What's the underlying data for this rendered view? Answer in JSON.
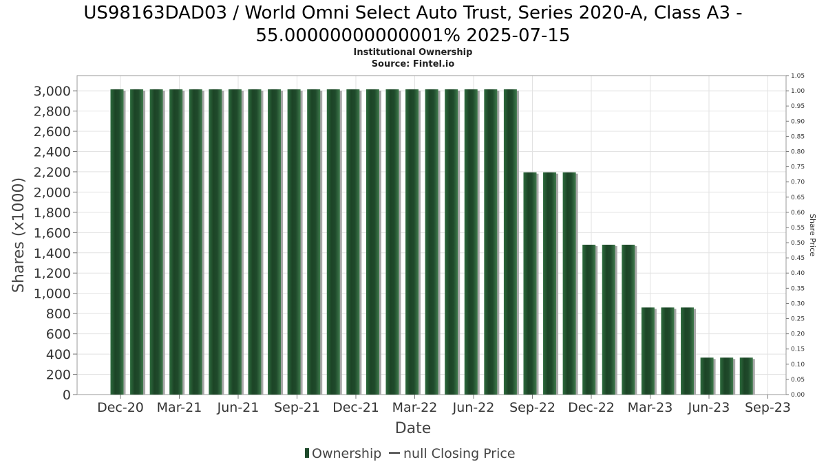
{
  "chart_data": {
    "type": "bar",
    "title_lines": [
      "US98163DAD03 / World Omni Select Auto Trust, Series 2020-A, Class A3 -",
      "55.00000000000001% 2025-07-15"
    ],
    "subtitle_lines": [
      "Institutional Ownership",
      "Source: Fintel.io"
    ],
    "xlabel": "Date",
    "ylabel": "Shares (x1000)",
    "y2label": "Share Price",
    "ylim": [
      0,
      3150
    ],
    "y_ticks": [
      0,
      200,
      400,
      600,
      800,
      1000,
      1200,
      1400,
      1600,
      1800,
      2000,
      2200,
      2400,
      2600,
      2800,
      3000
    ],
    "y_tick_labels": [
      "0",
      "200",
      "400",
      "600",
      "800",
      "1,000",
      "1,200",
      "1,400",
      "1,600",
      "1,800",
      "2,000",
      "2,200",
      "2,400",
      "2,600",
      "2,800",
      "3,000"
    ],
    "y2lim": [
      0,
      1.05
    ],
    "y2_tick_labels": [
      "0.00",
      "0.05",
      "0.10",
      "0.15",
      "0.20",
      "0.25",
      "0.30",
      "0.35",
      "0.40",
      "0.45",
      "0.50",
      "0.55",
      "0.60",
      "0.65",
      "0.70",
      "0.75",
      "0.80",
      "0.85",
      "0.90",
      "0.95",
      "1.00",
      "1.05"
    ],
    "x_tick_labels": [
      "Dec-20",
      "Mar-21",
      "Jun-21",
      "Sep-21",
      "Dec-21",
      "Mar-22",
      "Jun-22",
      "Sep-22",
      "Dec-22",
      "Mar-23",
      "Jun-23",
      "Sep-23"
    ],
    "grid": true,
    "series": [
      {
        "name": "Ownership",
        "color": "#1f4a2b",
        "values": [
          3015,
          3015,
          3015,
          3015,
          3015,
          3015,
          3015,
          3015,
          3015,
          3015,
          3015,
          3015,
          3015,
          3015,
          3015,
          3015,
          3015,
          3015,
          3015,
          3015,
          3015,
          2195,
          2195,
          2195,
          1480,
          1480,
          1480,
          860,
          860,
          860,
          365,
          365,
          365
        ]
      },
      {
        "name": "null Closing Price",
        "color": "#333333",
        "values": []
      }
    ],
    "legend_position": "bottom-center"
  }
}
